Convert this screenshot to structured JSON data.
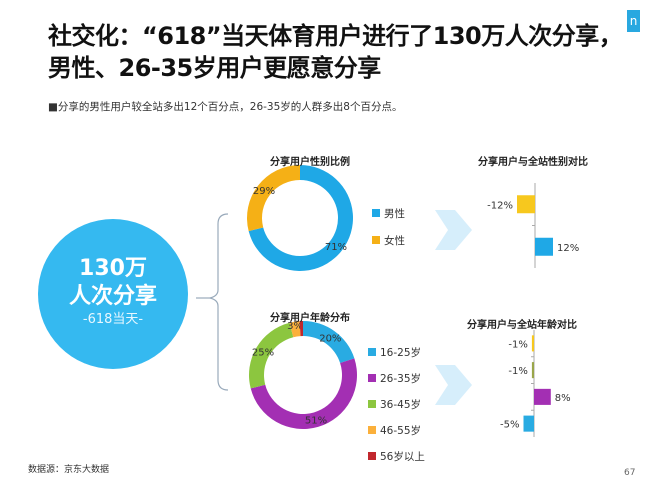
{
  "header": {
    "title": "社交化：“618”当天体育用户进行了130万人次分享，男性、26-35岁用户更愿意分享",
    "subtitle": "■分享的男性用户较全站多出12个百分点，26-35岁的人群多出8个百分点。",
    "logo": "n"
  },
  "highlight": {
    "value": "130万",
    "label": "人次分享",
    "note": "-618当天-"
  },
  "colors": {
    "male": "#1fa8e6",
    "female": "#f5b016",
    "c1": "#29abe2",
    "c2": "#a32fb3",
    "c3": "#8cc63f",
    "c4": "#fbb03b",
    "c5": "#c1272d",
    "yellow": "#f7c81e"
  },
  "chart_data": [
    {
      "type": "pie",
      "title": "分享用户性别比例",
      "labels": [
        "男性",
        "女性"
      ],
      "values": [
        71,
        29
      ],
      "value_labels": [
        "71%",
        "29%"
      ]
    },
    {
      "type": "bar",
      "title": "分享用户与全站性别对比",
      "categories": [
        "女性",
        "男性"
      ],
      "values": [
        -12,
        12
      ],
      "value_labels": [
        "-12%",
        "12%"
      ]
    },
    {
      "type": "pie",
      "title": "分享用户年龄分布",
      "labels": [
        "16-25岁",
        "26-35岁",
        "36-45岁",
        "46-55岁",
        "56岁以上"
      ],
      "values": [
        20,
        51,
        25,
        3,
        1
      ],
      "value_labels": [
        "20%",
        "51%",
        "25%",
        "3%",
        ""
      ]
    },
    {
      "type": "bar",
      "title": "分享用户与全站年龄对比",
      "categories": [
        "46-55岁",
        "36-45岁",
        "26-35岁",
        "16-25岁"
      ],
      "values": [
        -1,
        -1,
        8,
        -5
      ],
      "value_labels": [
        "-1%",
        "-1%",
        "8%",
        "-5%"
      ]
    }
  ],
  "footer": {
    "source": "数据源：京东大数据",
    "page": "67"
  }
}
